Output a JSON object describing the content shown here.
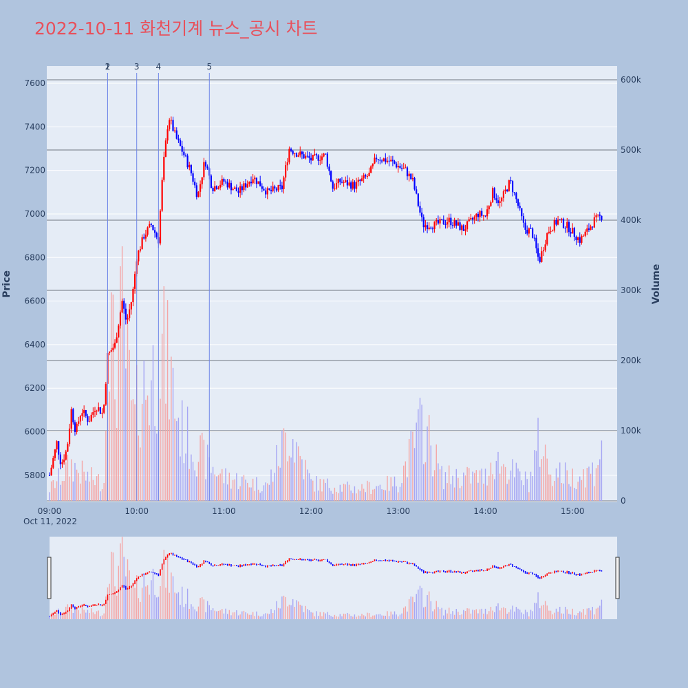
{
  "title": "2022-10-11 화천기계 뉴스_공시 차트",
  "colors": {
    "up": "#ff0000",
    "down": "#0000ff",
    "background": "#b0c4de",
    "plot_bg": "#e5ecf6",
    "title": "#e8505b"
  },
  "chart_data": {
    "type": "candlestick",
    "ylabel": "Price",
    "y2label": "Volume",
    "xdate_label": "Oct 11, 2022",
    "xticks": [
      "09:00",
      "10:00",
      "11:00",
      "12:00",
      "13:00",
      "14:00",
      "15:00"
    ],
    "yticks": [
      "5800",
      "6000",
      "6200",
      "6400",
      "6600",
      "6800",
      "7000",
      "7200",
      "7400",
      "7600"
    ],
    "y2ticks": [
      "0",
      "100k",
      "200k",
      "300k",
      "400k",
      "500k",
      "600k"
    ],
    "ylim": [
      5680,
      7660
    ],
    "y2lim": [
      0,
      600000
    ],
    "grid": true,
    "rangeslider": true,
    "annotations": [
      {
        "label": "1",
        "time": "09:40"
      },
      {
        "label": "2",
        "time": "09:40"
      },
      {
        "label": "3",
        "time": "10:00"
      },
      {
        "label": "4",
        "time": "10:15"
      },
      {
        "label": "5",
        "time": "10:50"
      }
    ],
    "price_path": [
      [
        "09:00",
        5800
      ],
      [
        "09:05",
        5950
      ],
      [
        "09:08",
        5850
      ],
      [
        "09:12",
        5920
      ],
      [
        "09:15",
        6100
      ],
      [
        "09:18",
        6000
      ],
      [
        "09:22",
        6100
      ],
      [
        "09:27",
        6050
      ],
      [
        "09:32",
        6120
      ],
      [
        "09:37",
        6080
      ],
      [
        "09:40",
        6350
      ],
      [
        "09:45",
        6400
      ],
      [
        "09:50",
        6600
      ],
      [
        "09:53",
        6500
      ],
      [
        "09:57",
        6620
      ],
      [
        "10:00",
        6800
      ],
      [
        "10:05",
        6900
      ],
      [
        "10:10",
        6950
      ],
      [
        "10:15",
        6880
      ],
      [
        "10:18",
        7200
      ],
      [
        "10:22",
        7450
      ],
      [
        "10:27",
        7350
      ],
      [
        "10:32",
        7280
      ],
      [
        "10:37",
        7200
      ],
      [
        "10:42",
        7080
      ],
      [
        "10:47",
        7250
      ],
      [
        "10:52",
        7120
      ],
      [
        "11:00",
        7150
      ],
      [
        "11:10",
        7100
      ],
      [
        "11:20",
        7170
      ],
      [
        "11:30",
        7100
      ],
      [
        "11:40",
        7120
      ],
      [
        "11:45",
        7300
      ],
      [
        "11:50",
        7280
      ],
      [
        "12:00",
        7250
      ],
      [
        "12:10",
        7270
      ],
      [
        "12:15",
        7120
      ],
      [
        "12:20",
        7150
      ],
      [
        "12:30",
        7130
      ],
      [
        "12:40",
        7180
      ],
      [
        "12:45",
        7260
      ],
      [
        "12:55",
        7240
      ],
      [
        "13:05",
        7200
      ],
      [
        "13:10",
        7150
      ],
      [
        "13:17",
        6950
      ],
      [
        "13:25",
        6950
      ],
      [
        "13:35",
        6970
      ],
      [
        "13:45",
        6930
      ],
      [
        "13:55",
        7000
      ],
      [
        "14:00",
        6990
      ],
      [
        "14:05",
        7100
      ],
      [
        "14:10",
        7050
      ],
      [
        "14:17",
        7150
      ],
      [
        "14:22",
        7050
      ],
      [
        "14:27",
        6930
      ],
      [
        "14:32",
        6920
      ],
      [
        "14:37",
        6780
      ],
      [
        "14:43",
        6920
      ],
      [
        "14:50",
        6970
      ],
      [
        "14:57",
        6940
      ],
      [
        "15:05",
        6880
      ],
      [
        "15:10",
        6920
      ],
      [
        "15:15",
        6970
      ],
      [
        "15:20",
        6990
      ]
    ],
    "volume_path": [
      [
        "09:00",
        20000
      ],
      [
        "09:15",
        60000
      ],
      [
        "09:25",
        40000
      ],
      [
        "09:38",
        30000
      ],
      [
        "09:40",
        350000
      ],
      [
        "09:45",
        200000
      ],
      [
        "09:50",
        300000
      ],
      [
        "09:58",
        120000
      ],
      [
        "10:02",
        180000
      ],
      [
        "10:10",
        200000
      ],
      [
        "10:18",
        250000
      ],
      [
        "10:22",
        220000
      ],
      [
        "10:30",
        120000
      ],
      [
        "10:40",
        90000
      ],
      [
        "10:50",
        60000
      ],
      [
        "11:00",
        40000
      ],
      [
        "11:30",
        25000
      ],
      [
        "11:45",
        120000
      ],
      [
        "12:00",
        30000
      ],
      [
        "12:30",
        20000
      ],
      [
        "13:00",
        30000
      ],
      [
        "13:17",
        130000
      ],
      [
        "13:30",
        40000
      ],
      [
        "14:00",
        40000
      ],
      [
        "14:05",
        70000
      ],
      [
        "14:30",
        30000
      ],
      [
        "14:37",
        100000
      ],
      [
        "14:45",
        50000
      ],
      [
        "15:00",
        40000
      ],
      [
        "15:15",
        50000
      ],
      [
        "15:20",
        100000
      ]
    ]
  }
}
